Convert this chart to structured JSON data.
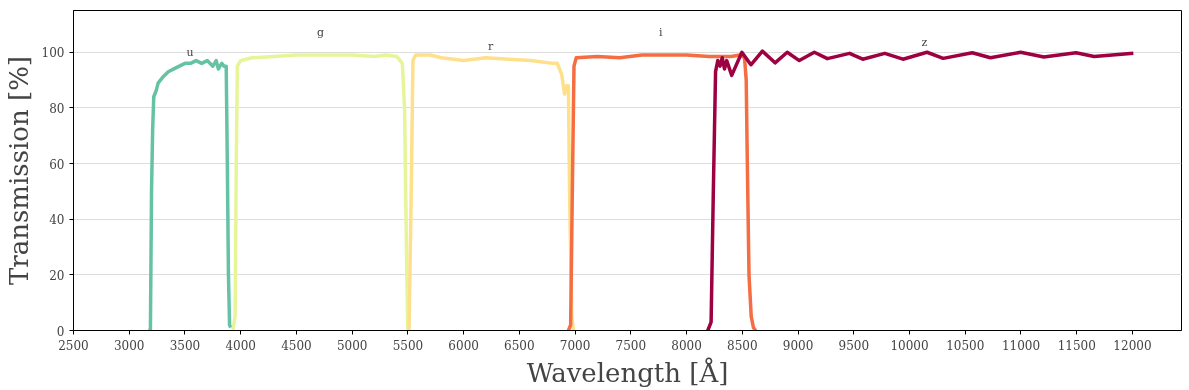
{
  "chart_data": {
    "type": "line",
    "xlabel": "Wavelength [Å]",
    "ylabel": "Transmission [%]",
    "xlim": [
      2500,
      12440
    ],
    "xticks": [
      2500,
      3000,
      3500,
      4000,
      4500,
      5000,
      5500,
      6000,
      6500,
      7000,
      7500,
      8000,
      8500,
      9000,
      9500,
      10000,
      10500,
      11000,
      11500,
      12000
    ],
    "ylim": [
      0,
      115
    ],
    "yticks": [
      0,
      20,
      40,
      60,
      80,
      100
    ],
    "grid": "y",
    "marker": "none",
    "line_style": "solid",
    "series": [
      {
        "name": "u",
        "color": "#66c2a5",
        "x": [
          3170,
          3190,
          3200,
          3210,
          3220,
          3240,
          3260,
          3300,
          3350,
          3400,
          3450,
          3500,
          3550,
          3600,
          3650,
          3700,
          3750,
          3780,
          3800,
          3830,
          3850,
          3870,
          3880,
          3890,
          3900,
          3910
        ],
        "values": [
          0,
          0,
          50,
          72,
          84,
          86,
          89,
          91,
          93,
          94,
          95,
          96,
          96,
          97,
          96,
          97,
          95,
          97,
          94,
          96,
          95,
          95,
          60,
          20,
          2,
          1
        ]
      },
      {
        "name": "g",
        "color": "#e6f598",
        "x": [
          3930,
          3950,
          3960,
          3970,
          4000,
          4100,
          4300,
          4500,
          5000,
          5200,
          5300,
          5400,
          5450,
          5470,
          5490,
          5500,
          5510
        ],
        "values": [
          0,
          5,
          60,
          95,
          97,
          98,
          98.5,
          99,
          99,
          98.5,
          99,
          98.5,
          96,
          80,
          20,
          0,
          0
        ]
      },
      {
        "name": "r",
        "color": "#fee08b",
        "x": [
          5510,
          5530,
          5545,
          5570,
          5700,
          5800,
          6000,
          6200,
          6400,
          6600,
          6800,
          6840,
          6880,
          6905,
          6925,
          6940,
          6950,
          6970,
          6985
        ],
        "values": [
          0,
          50,
          97,
          99,
          99,
          98,
          97,
          98,
          97.5,
          97,
          96,
          96,
          92,
          85,
          88,
          88,
          50,
          5,
          0
        ]
      },
      {
        "name": "i",
        "color": "#f46d43",
        "x": [
          6940,
          6960,
          6975,
          6990,
          7010,
          7200,
          7400,
          7600,
          8000,
          8200,
          8400,
          8480,
          8520,
          8535,
          8545,
          8560,
          8580,
          8600,
          8620
        ],
        "values": [
          0,
          2,
          50,
          95,
          98,
          98.5,
          98,
          99,
          99,
          98.5,
          98.5,
          99,
          98,
          90,
          60,
          20,
          5,
          1,
          0
        ]
      },
      {
        "name": "z",
        "color": "#9e0142",
        "x": [
          8190,
          8220,
          8240,
          8260,
          8280,
          8300,
          8320,
          8340,
          8360,
          8405,
          8496,
          8577,
          8680,
          8794,
          8903,
          9011,
          9146,
          9263,
          9462,
          9580,
          9778,
          9941,
          10157,
          10302,
          10563,
          10726,
          10997,
          11205,
          11494,
          11656,
          12008
        ],
        "values": [
          0,
          3,
          50,
          93,
          97,
          95,
          98,
          94,
          97,
          91.7,
          100,
          95.5,
          100.4,
          96.2,
          100,
          97,
          100,
          97.7,
          99.6,
          97.5,
          99.6,
          97.5,
          100,
          97.8,
          99.8,
          98,
          100,
          98.3,
          99.8,
          98.5,
          99.6
        ]
      }
    ]
  }
}
